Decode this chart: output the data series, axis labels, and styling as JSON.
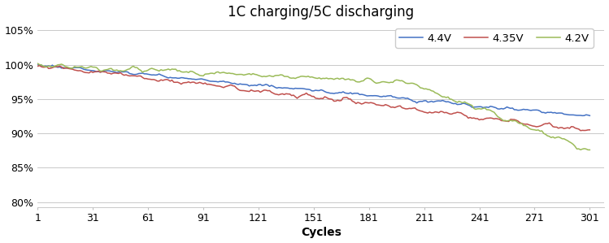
{
  "title": "1C charging/5C discharging",
  "xlabel": "Cycles",
  "x_ticks": [
    1,
    31,
    61,
    91,
    121,
    151,
    181,
    211,
    241,
    271,
    301
  ],
  "y_ticks": [
    0.8,
    0.85,
    0.9,
    0.95,
    1.0,
    1.05
  ],
  "xlim": [
    1,
    309
  ],
  "ylim": [
    0.793,
    1.063
  ],
  "colors": {
    "4.4V": "#4472C4",
    "4.35V": "#C0504D",
    "4.2V": "#9BBB59"
  },
  "n_cycles": 301,
  "bg_color": "#FFFFFF",
  "grid_color": "#C0C0C0",
  "title_fontsize": 12,
  "label_fontsize": 10,
  "tick_fontsize": 9
}
